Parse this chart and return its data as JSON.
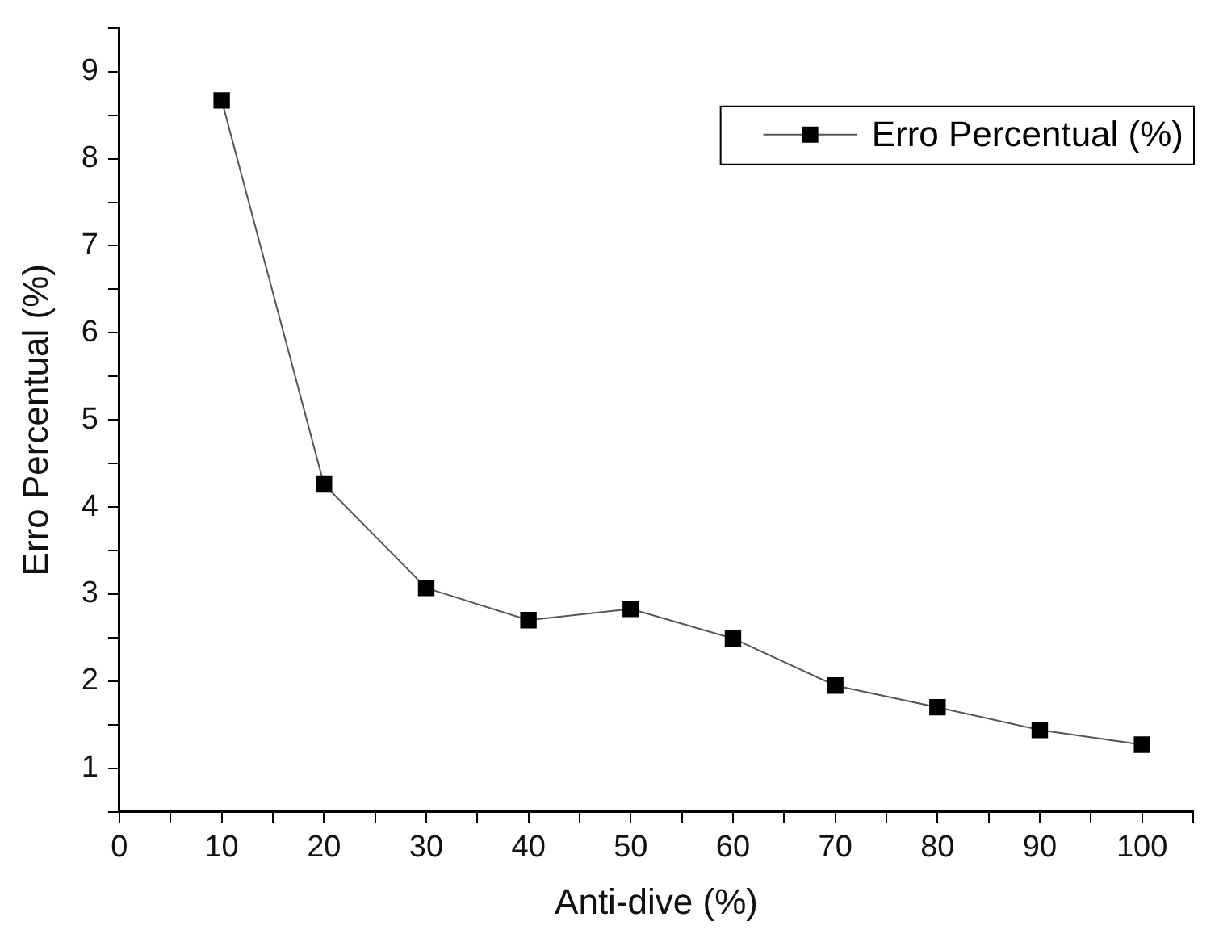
{
  "chart_data": {
    "type": "line",
    "xlabel": "Anti-dive (%)",
    "ylabel": "Erro Percentual (%)",
    "x": [
      10,
      20,
      30,
      40,
      50,
      60,
      70,
      80,
      90,
      100
    ],
    "series": [
      {
        "name": "Erro Percentual (%)",
        "color": "#000000",
        "values": [
          8.67,
          4.26,
          3.07,
          2.7,
          2.83,
          2.49,
          1.95,
          1.7,
          1.44,
          1.27
        ]
      }
    ],
    "xlim": [
      0,
      105
    ],
    "xticks": [
      0,
      {
        "value": 5,
        "label": null
      },
      10,
      {
        "value": 15,
        "label": null
      },
      20,
      {
        "value": 25,
        "label": null
      },
      30,
      {
        "value": 35,
        "label": null
      },
      40,
      {
        "value": 45,
        "label": null
      },
      50,
      {
        "value": 55,
        "label": null
      },
      60,
      {
        "value": 65,
        "label": null
      },
      70,
      {
        "value": 75,
        "label": null
      },
      80,
      {
        "value": 85,
        "label": null
      },
      90,
      {
        "value": 95,
        "label": null
      },
      100,
      {
        "value": 105,
        "label": null
      }
    ],
    "ylim": [
      0.5,
      9.5
    ],
    "yticks": [
      {
        "value": 0.5,
        "label": null
      },
      1,
      {
        "value": 1.5,
        "label": null
      },
      2,
      {
        "value": 2.5,
        "label": null
      },
      3,
      {
        "value": 3.5,
        "label": null
      },
      4,
      {
        "value": 4.5,
        "label": null
      },
      5,
      {
        "value": 5.5,
        "label": null
      },
      6,
      {
        "value": 6.5,
        "label": null
      },
      7,
      {
        "value": 7.5,
        "label": null
      },
      8,
      {
        "value": 8.5,
        "label": null
      },
      9,
      {
        "value": 9.5,
        "label": null
      }
    ],
    "grid": false,
    "legend": "top right",
    "marker": "square",
    "line_style": "solid"
  }
}
